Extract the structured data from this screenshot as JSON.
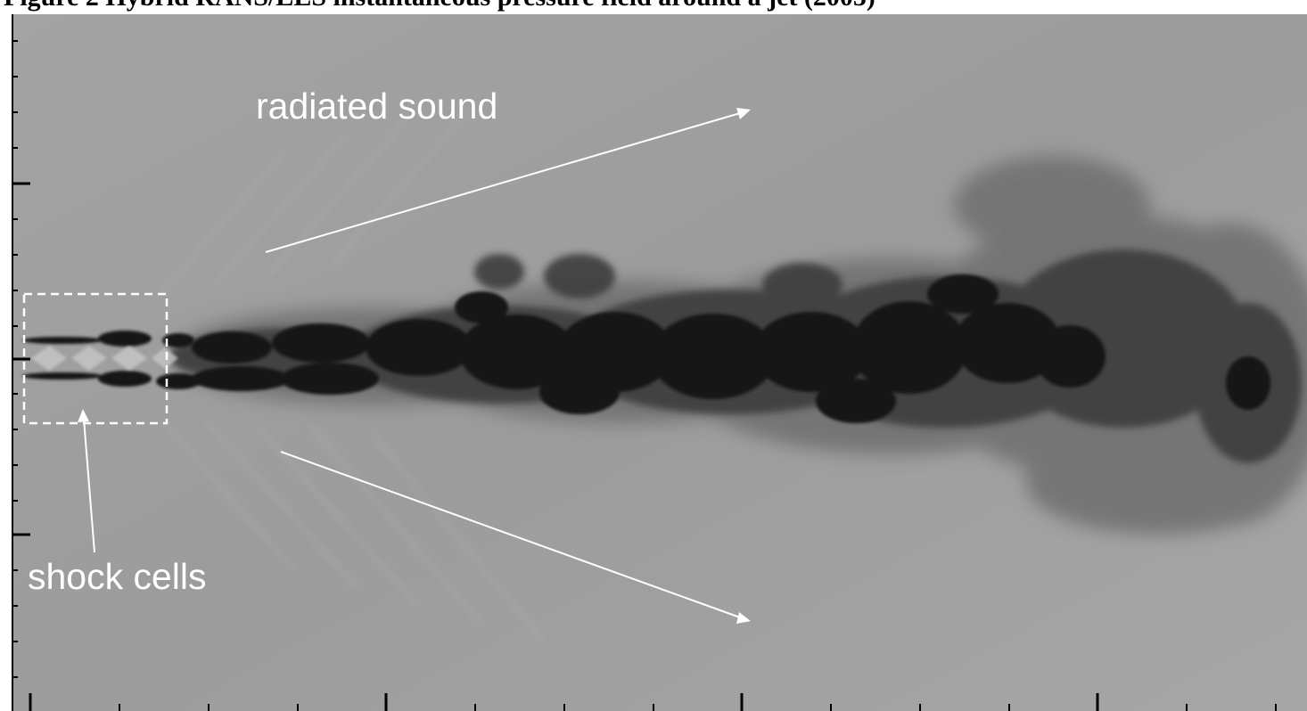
{
  "figure": {
    "title_partial": "Figure 2 Hybrid RANS/LES instantaneous pressure field around a jet (2005)",
    "annotations": {
      "radiated_sound": "radiated sound",
      "shock_cells": "shock cells"
    },
    "colors": {
      "background_gray": "#9a9a9a",
      "jet_core": "#151515",
      "annotation": "#ffffff",
      "axis": "#000000"
    }
  }
}
